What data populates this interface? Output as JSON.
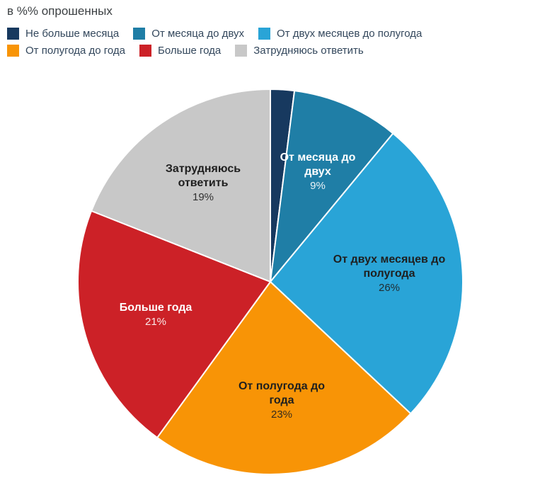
{
  "chart_data": {
    "type": "pie",
    "title": "в %% опрошенных",
    "direction": "clockwise",
    "start_angle_deg": 0,
    "legend_position": "top",
    "grid": false,
    "percent_suffix": "%",
    "slices": [
      {
        "label": "Не больше месяца",
        "value": 2,
        "color": "#17395f",
        "text_color": "#ffffff",
        "label_shown": false
      },
      {
        "label": "От месяца до двух",
        "value": 9,
        "color": "#1f7ea6",
        "text_color": "#ffffff",
        "label_shown": true
      },
      {
        "label": "От двух месяцев до полугода",
        "value": 26,
        "color": "#29a4d7",
        "text_color": "#1f1f1f",
        "label_shown": true
      },
      {
        "label": "От полугода до года",
        "value": 23,
        "color": "#f89406",
        "text_color": "#1f1f1f",
        "label_shown": true
      },
      {
        "label": "Больше года",
        "value": 21,
        "color": "#cc2127",
        "text_color": "#ffffff",
        "label_shown": true
      },
      {
        "label": "Затрудняюсь ответить",
        "value": 19,
        "color": "#c8c8c8",
        "text_color": "#1f1f1f",
        "label_shown": true
      }
    ]
  }
}
